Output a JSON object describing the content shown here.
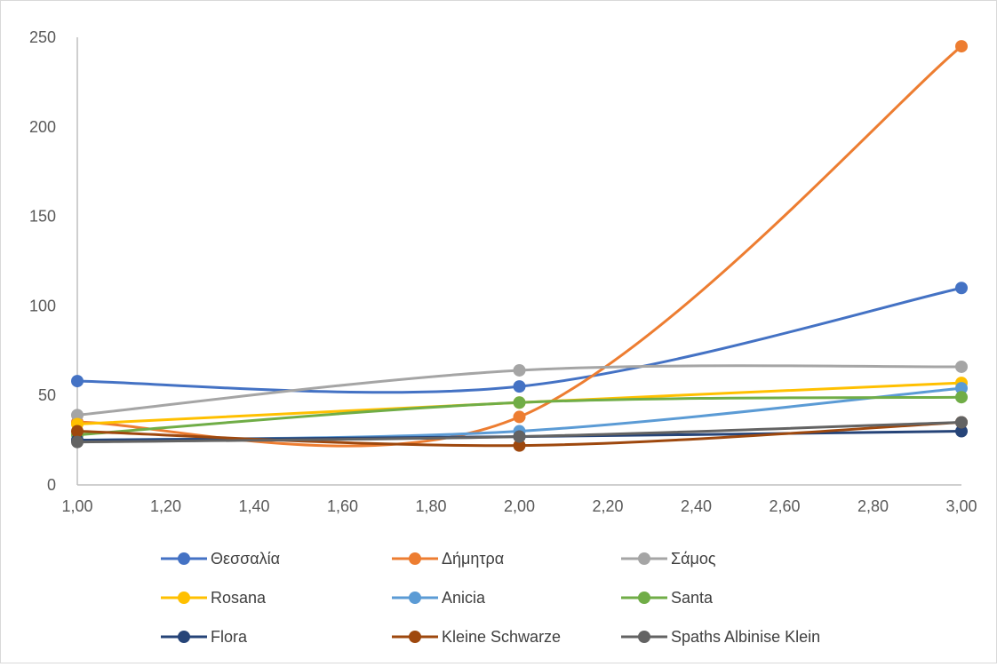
{
  "chart_data": {
    "type": "line",
    "smooth": true,
    "title": "",
    "xlabel": "",
    "ylabel": "",
    "xlim": [
      1,
      3
    ],
    "ylim": [
      0,
      250
    ],
    "x_ticks": [
      1.0,
      1.2,
      1.4,
      1.6,
      1.8,
      2.0,
      2.2,
      2.4,
      2.6,
      2.8,
      3.0
    ],
    "x_tick_labels": [
      "1,00",
      "1,20",
      "1,40",
      "1,60",
      "1,80",
      "2,00",
      "2,20",
      "2,40",
      "2,60",
      "2,80",
      "3,00"
    ],
    "y_ticks": [
      0,
      50,
      100,
      150,
      200,
      250
    ],
    "y_tick_labels": [
      "0",
      "50",
      "100",
      "150",
      "200",
      "250"
    ],
    "grid": false,
    "legend_position": "bottom",
    "x": [
      1,
      2,
      3
    ],
    "series": [
      {
        "name": "Θεσσαλία",
        "color": "#4472c4",
        "values": [
          58,
          55,
          110
        ]
      },
      {
        "name": "Δήμητρα",
        "color": "#ed7d31",
        "values": [
          35,
          38,
          245
        ]
      },
      {
        "name": "Σάμος",
        "color": "#a5a5a5",
        "values": [
          39,
          64,
          66
        ]
      },
      {
        "name": "Rosana",
        "color": "#ffc000",
        "values": [
          34,
          46,
          57
        ]
      },
      {
        "name": "Anicia",
        "color": "#5b9bd5",
        "values": [
          25,
          30,
          54
        ]
      },
      {
        "name": "Santa",
        "color": "#70ad47",
        "values": [
          28,
          46,
          49
        ]
      },
      {
        "name": "Flora",
        "color": "#264478",
        "values": [
          25,
          27,
          30
        ]
      },
      {
        "name": "Kleine Schwarze",
        "color": "#9e480e",
        "values": [
          30,
          22,
          35
        ]
      },
      {
        "name": "Spaths Albinise Klein",
        "color": "#636363",
        "values": [
          24,
          27,
          35
        ]
      }
    ]
  }
}
